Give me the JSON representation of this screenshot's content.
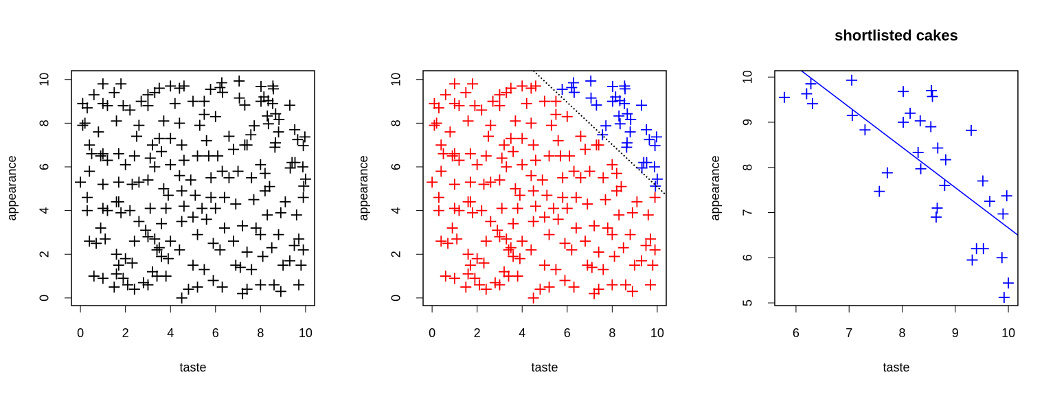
{
  "chart_data": [
    {
      "type": "scatter",
      "xlabel": "taste",
      "ylabel": "appearance",
      "xlim": [
        -0.4,
        10.4
      ],
      "ylim": [
        -0.35,
        10.4
      ],
      "xticks": [
        0,
        2,
        4,
        6,
        8,
        10
      ],
      "yticks": [
        0,
        2,
        4,
        6,
        8,
        10
      ],
      "series": [
        {
          "color": "#000000",
          "x": [
            0.1,
            0.2,
            0.3,
            0.4,
            0.5,
            0.4,
            0.0,
            0.3,
            0.3,
            0.4,
            0.7,
            0.6,
            0.9,
            1.0,
            1.1,
            1.0,
            1.2,
            1.0,
            0.9,
            1.0,
            1.2,
            0.8,
            1.0,
            1.2,
            1.0,
            0.6,
            1.5,
            1.6,
            1.7,
            1.7,
            1.6,
            1.7,
            1.8,
            1.6,
            1.7,
            1.6,
            1.5,
            1.9,
            2.0,
            2.1,
            2.4,
            2.3,
            2.4,
            2.6,
            2.2,
            2.3,
            2.0,
            2.4,
            2.6,
            2.5,
            2.6,
            2.7,
            1.8,
            1.9,
            2.2,
            3.0,
            3.3,
            3.5,
            3.0,
            3.2,
            3.5,
            3.1,
            3.3,
            3.0,
            3.1,
            2.9,
            3.0,
            3.3,
            3.4,
            3.5,
            3.6,
            3.2,
            3.0,
            3.4,
            3.8,
            3.9,
            4.0,
            3.6,
            3.8,
            3.9,
            3.7,
            4.0,
            3.6,
            4.0,
            3.7,
            4.2,
            4.0,
            4.4,
            4.6,
            4.4,
            4.5,
            4.6,
            4.4,
            4.5,
            4.6,
            4.5,
            4.4,
            4.5,
            4.8,
            5.2,
            5.0,
            5.2,
            5.0,
            5.4,
            5.1,
            4.9,
            5.2,
            5.3,
            5.5,
            5.0,
            5.5,
            5.6,
            5.7,
            5.8,
            5.8,
            5.6,
            5.9,
            5.5,
            5.9,
            6.3,
            6.2,
            6.4,
            6.0,
            6.4,
            6.3,
            6.1,
            6.0,
            6.6,
            6.8,
            6.6,
            6.9,
            6.8,
            6.9,
            7.1,
            7.2,
            7.4,
            7.4,
            7.2,
            7.0,
            7.4,
            7.6,
            7.7,
            7.8,
            7.6,
            8.0,
            8.1,
            8.0,
            8.3,
            8.2,
            8.0,
            8.4,
            8.5,
            8.6,
            8.9,
            9.0,
            8.8,
            8.9,
            9.1,
            9.3,
            9.5,
            9.7,
            9.8,
            9.9,
            9.7,
            9.6,
            9.9,
            7.3,
            8.2,
            2.8,
            0.1,
            5.78,
            6.2,
            6.28,
            6.31,
            7.05,
            7.06,
            7.3,
            7.57,
            7.72,
            8.02,
            8.02,
            8.15,
            8.3,
            8.34,
            8.35,
            8.54,
            8.55,
            8.57,
            8.64,
            8.66,
            8.67,
            8.8,
            8.82,
            9.3,
            9.32,
            9.4,
            9.52,
            9.53,
            9.65,
            9.88,
            9.9,
            9.92,
            9.97,
            10.0
          ],
          "y": [
            8.9,
            8.0,
            8.7,
            7.0,
            6.6,
            5.8,
            5.3,
            4.6,
            4.0,
            2.6,
            2.5,
            1.0,
            3.2,
            0.9,
            2.7,
            4.1,
            4.0,
            5.2,
            6.5,
            6.6,
            6.3,
            7.6,
            8.9,
            8.8,
            9.8,
            9.3,
            9.4,
            8.1,
            6.6,
            5.3,
            4.4,
            4.4,
            3.9,
            2.0,
            1.5,
            1.1,
            0.5,
            0.9,
            1.8,
            0.6,
            0.4,
            1.6,
            2.6,
            3.5,
            4.0,
            5.2,
            6.1,
            6.5,
            5.3,
            7.4,
            7.9,
            9.0,
            9.8,
            8.8,
            8.6,
            9.3,
            9.4,
            9.6,
            8.8,
            7.0,
            7.3,
            6.4,
            6.0,
            5.4,
            4.1,
            3.1,
            2.8,
            2.7,
            2.2,
            2.3,
            1.9,
            1.2,
            0.6,
            1.0,
            1.0,
            1.8,
            2.6,
            3.4,
            4.1,
            4.7,
            5.0,
            6.1,
            6.7,
            7.3,
            8.1,
            8.9,
            9.7,
            9.6,
            9.7,
            8.0,
            7.0,
            6.3,
            5.6,
            4.9,
            4.2,
            3.5,
            2.2,
            0.0,
            0.4,
            0.5,
            1.5,
            2.9,
            3.7,
            4.1,
            4.7,
            5.4,
            6.5,
            7.9,
            8.4,
            9.0,
            9.0,
            7.2,
            6.5,
            5.5,
            4.6,
            3.6,
            2.5,
            1.3,
            0.8,
            0.5,
            2.2,
            3.2,
            4.1,
            4.6,
            5.8,
            6.5,
            8.3,
            7.4,
            6.8,
            5.5,
            4.3,
            2.6,
            1.5,
            1.4,
            0.2,
            0.4,
            2.1,
            3.3,
            5.8,
            7.0,
            5.5,
            4.5,
            3.2,
            1.3,
            0.6,
            1.9,
            2.9,
            3.8,
            4.9,
            6.1,
            5.1,
            2.3,
            0.6,
            0.3,
            1.5,
            2.9,
            3.9,
            4.4,
            1.7,
            2.4,
            0.6,
            1.5,
            2.2,
            2.7,
            3.8,
            4.6,
            7.0,
            5.7,
            0.7,
            7.9,
            9.55,
            9.63,
            9.85,
            9.41,
            9.93,
            9.15,
            8.83,
            7.47,
            7.88,
            9.68,
            9.0,
            9.2,
            8.33,
            9.03,
            7.97,
            8.9,
            9.7,
            9.57,
            6.9,
            7.1,
            8.43,
            7.6,
            8.17,
            8.82,
            5.95,
            6.2,
            7.7,
            6.2,
            7.25,
            6.0,
            6.97,
            5.12,
            7.37,
            5.44
          ]
        }
      ]
    },
    {
      "type": "scatter",
      "xlabel": "taste",
      "ylabel": "appearance",
      "xlim": [
        -0.4,
        10.4
      ],
      "ylim": [
        -0.35,
        10.4
      ],
      "xticks": [
        0,
        2,
        4,
        6,
        8,
        10
      ],
      "yticks": [
        0,
        2,
        4,
        6,
        8,
        10
      ],
      "series": [
        {
          "color": "#ff0000",
          "x": [
            0.1,
            0.2,
            0.3,
            0.4,
            0.5,
            0.4,
            0.0,
            0.3,
            0.3,
            0.4,
            0.7,
            0.6,
            0.9,
            1.0,
            1.1,
            1.0,
            1.2,
            1.0,
            0.9,
            1.0,
            1.2,
            0.8,
            1.0,
            1.2,
            1.0,
            0.6,
            1.5,
            1.6,
            1.7,
            1.7,
            1.6,
            1.7,
            1.8,
            1.6,
            1.7,
            1.6,
            1.5,
            1.9,
            2.0,
            2.1,
            2.4,
            2.3,
            2.4,
            2.6,
            2.2,
            2.3,
            2.0,
            2.4,
            2.6,
            2.5,
            2.6,
            2.7,
            1.8,
            1.9,
            2.2,
            3.0,
            3.3,
            3.5,
            3.0,
            3.2,
            3.5,
            3.1,
            3.3,
            3.0,
            3.1,
            2.9,
            3.0,
            3.3,
            3.4,
            3.5,
            3.6,
            3.2,
            3.0,
            3.4,
            3.8,
            3.9,
            4.0,
            3.6,
            3.8,
            3.9,
            3.7,
            4.0,
            3.6,
            4.0,
            3.7,
            4.2,
            4.0,
            4.4,
            4.6,
            4.4,
            4.5,
            4.6,
            4.4,
            4.5,
            4.6,
            4.5,
            4.4,
            4.5,
            4.8,
            5.2,
            5.0,
            5.2,
            5.0,
            5.4,
            5.1,
            4.9,
            5.2,
            5.3,
            5.5,
            5.0,
            5.5,
            5.6,
            5.7,
            5.8,
            5.8,
            5.6,
            5.9,
            5.5,
            5.9,
            6.3,
            6.2,
            6.4,
            6.0,
            6.4,
            6.3,
            6.1,
            6.0,
            6.6,
            6.8,
            6.6,
            6.9,
            6.8,
            6.9,
            7.1,
            7.2,
            7.4,
            7.4,
            7.2,
            7.0,
            7.4,
            7.6,
            7.7,
            7.8,
            7.6,
            8.0,
            8.1,
            8.0,
            8.3,
            8.2,
            8.0,
            8.4,
            8.5,
            8.6,
            8.9,
            9.0,
            8.8,
            8.9,
            9.1,
            9.3,
            9.5,
            9.7,
            9.8,
            9.9,
            9.7,
            9.6,
            9.9,
            7.3,
            8.2,
            2.8,
            0.1
          ],
          "y": [
            8.9,
            8.0,
            8.7,
            7.0,
            6.6,
            5.8,
            5.3,
            4.6,
            4.0,
            2.6,
            2.5,
            1.0,
            3.2,
            0.9,
            2.7,
            4.1,
            4.0,
            5.2,
            6.5,
            6.6,
            6.3,
            7.6,
            8.9,
            8.8,
            9.8,
            9.3,
            9.4,
            8.1,
            6.6,
            5.3,
            4.4,
            4.4,
            3.9,
            2.0,
            1.5,
            1.1,
            0.5,
            0.9,
            1.8,
            0.6,
            0.4,
            1.6,
            2.6,
            3.5,
            4.0,
            5.2,
            6.1,
            6.5,
            5.3,
            7.4,
            7.9,
            9.0,
            9.8,
            8.8,
            8.6,
            9.3,
            9.4,
            9.6,
            8.8,
            7.0,
            7.3,
            6.4,
            6.0,
            5.4,
            4.1,
            3.1,
            2.8,
            2.7,
            2.2,
            2.3,
            1.9,
            1.2,
            0.6,
            1.0,
            1.0,
            1.8,
            2.6,
            3.4,
            4.1,
            4.7,
            5.0,
            6.1,
            6.7,
            7.3,
            8.1,
            8.9,
            9.7,
            9.6,
            9.7,
            8.0,
            7.0,
            6.3,
            5.6,
            4.9,
            4.2,
            3.5,
            2.2,
            0.0,
            0.4,
            0.5,
            1.5,
            2.9,
            3.7,
            4.1,
            4.7,
            5.4,
            6.5,
            7.9,
            8.4,
            9.0,
            9.0,
            7.2,
            6.5,
            5.5,
            4.6,
            3.6,
            2.5,
            1.3,
            0.8,
            0.5,
            2.2,
            3.2,
            4.1,
            4.6,
            5.8,
            6.5,
            8.3,
            7.4,
            6.8,
            5.5,
            4.3,
            2.6,
            1.5,
            1.4,
            0.2,
            0.4,
            2.1,
            3.3,
            5.8,
            7.0,
            5.5,
            4.5,
            3.2,
            1.3,
            0.6,
            1.9,
            2.9,
            3.8,
            4.9,
            6.1,
            5.1,
            2.3,
            0.6,
            0.3,
            1.5,
            2.9,
            3.9,
            4.4,
            1.7,
            2.4,
            0.6,
            1.5,
            2.2,
            2.7,
            3.8,
            4.6,
            7.0,
            5.7,
            0.7,
            7.9
          ]
        },
        {
          "color": "#0000ff",
          "x": [
            5.78,
            6.2,
            6.28,
            6.31,
            7.05,
            7.06,
            7.3,
            7.57,
            7.72,
            8.02,
            8.02,
            8.15,
            8.3,
            8.34,
            8.35,
            8.54,
            8.55,
            8.57,
            8.64,
            8.66,
            8.67,
            8.8,
            8.82,
            9.3,
            9.32,
            9.4,
            9.52,
            9.53,
            9.65,
            9.88,
            9.9,
            9.92,
            9.97,
            10.0
          ],
          "y": [
            9.55,
            9.63,
            9.85,
            9.41,
            9.93,
            9.15,
            8.83,
            7.47,
            7.88,
            9.68,
            9.0,
            9.2,
            8.33,
            9.03,
            7.97,
            8.9,
            9.7,
            9.57,
            6.9,
            7.1,
            8.43,
            7.6,
            8.17,
            8.82,
            5.95,
            6.2,
            7.7,
            6.2,
            7.25,
            6.0,
            6.97,
            5.12,
            7.37,
            5.44
          ]
        }
      ],
      "line": {
        "x": [
          4.5,
          10.4
        ],
        "y": [
          10.4,
          4.7
        ],
        "color": "#000000",
        "style": "dotted"
      }
    },
    {
      "type": "scatter",
      "title": "shortlisted cakes",
      "xlabel": "taste",
      "ylabel": "appearance",
      "xlim": [
        5.6,
        10.18
      ],
      "ylim": [
        4.94,
        10.14
      ],
      "xticks": [
        6,
        7,
        8,
        9,
        10
      ],
      "yticks": [
        5,
        6,
        7,
        8,
        9,
        10
      ],
      "series": [
        {
          "color": "#0000ff",
          "x": [
            5.78,
            6.2,
            6.28,
            6.31,
            7.05,
            7.06,
            7.3,
            7.57,
            7.72,
            8.02,
            8.02,
            8.15,
            8.3,
            8.34,
            8.35,
            8.54,
            8.55,
            8.57,
            8.64,
            8.66,
            8.67,
            8.8,
            8.82,
            9.3,
            9.32,
            9.4,
            9.52,
            9.53,
            9.65,
            9.88,
            9.9,
            9.92,
            9.97,
            10.0
          ],
          "y": [
            9.55,
            9.63,
            9.85,
            9.41,
            9.93,
            9.15,
            8.83,
            7.47,
            7.88,
            9.68,
            9.0,
            9.2,
            8.33,
            9.03,
            7.97,
            8.9,
            9.7,
            9.57,
            6.9,
            7.1,
            8.43,
            7.6,
            8.17,
            8.82,
            5.95,
            6.2,
            7.7,
            6.2,
            7.25,
            6.0,
            6.97,
            5.12,
            7.37,
            5.44
          ]
        }
      ],
      "line": {
        "x": [
          6.1,
          10.18
        ],
        "y": [
          10.14,
          6.5
        ],
        "color": "#0000ff",
        "style": "solid"
      }
    }
  ]
}
